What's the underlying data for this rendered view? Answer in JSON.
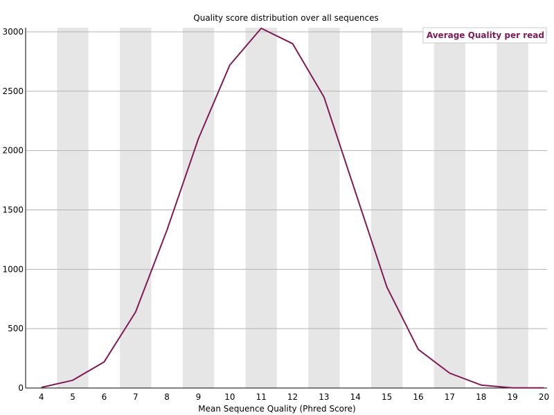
{
  "chart_data": {
    "type": "line",
    "title": "Quality score distribution over all sequences",
    "xlabel": "Mean Sequence Quality (Phred Score)",
    "ylabel": "",
    "x": [
      4,
      5,
      6,
      7,
      8,
      9,
      10,
      11,
      12,
      13,
      14,
      15,
      16,
      17,
      18,
      19,
      20
    ],
    "series": [
      {
        "name": "Average Quality per read",
        "color": "#7f1a55",
        "values": [
          5,
          65,
          220,
          640,
          1330,
          2100,
          2720,
          3030,
          2900,
          2450,
          1650,
          850,
          325,
          125,
          25,
          2,
          2
        ]
      }
    ],
    "xlim": [
      4,
      20
    ],
    "ylim": [
      0,
      3000
    ],
    "yticks": [
      0,
      500,
      1000,
      1500,
      2000,
      2500,
      3000
    ],
    "xticks": [
      4,
      5,
      6,
      7,
      8,
      9,
      10,
      11,
      12,
      13,
      14,
      15,
      16,
      17,
      18,
      19,
      20
    ],
    "grid": true,
    "alternating_bands": true,
    "band_color": "#e6e6e6",
    "gridline_color": "#b3b3b3",
    "legend_position": "top-right"
  }
}
